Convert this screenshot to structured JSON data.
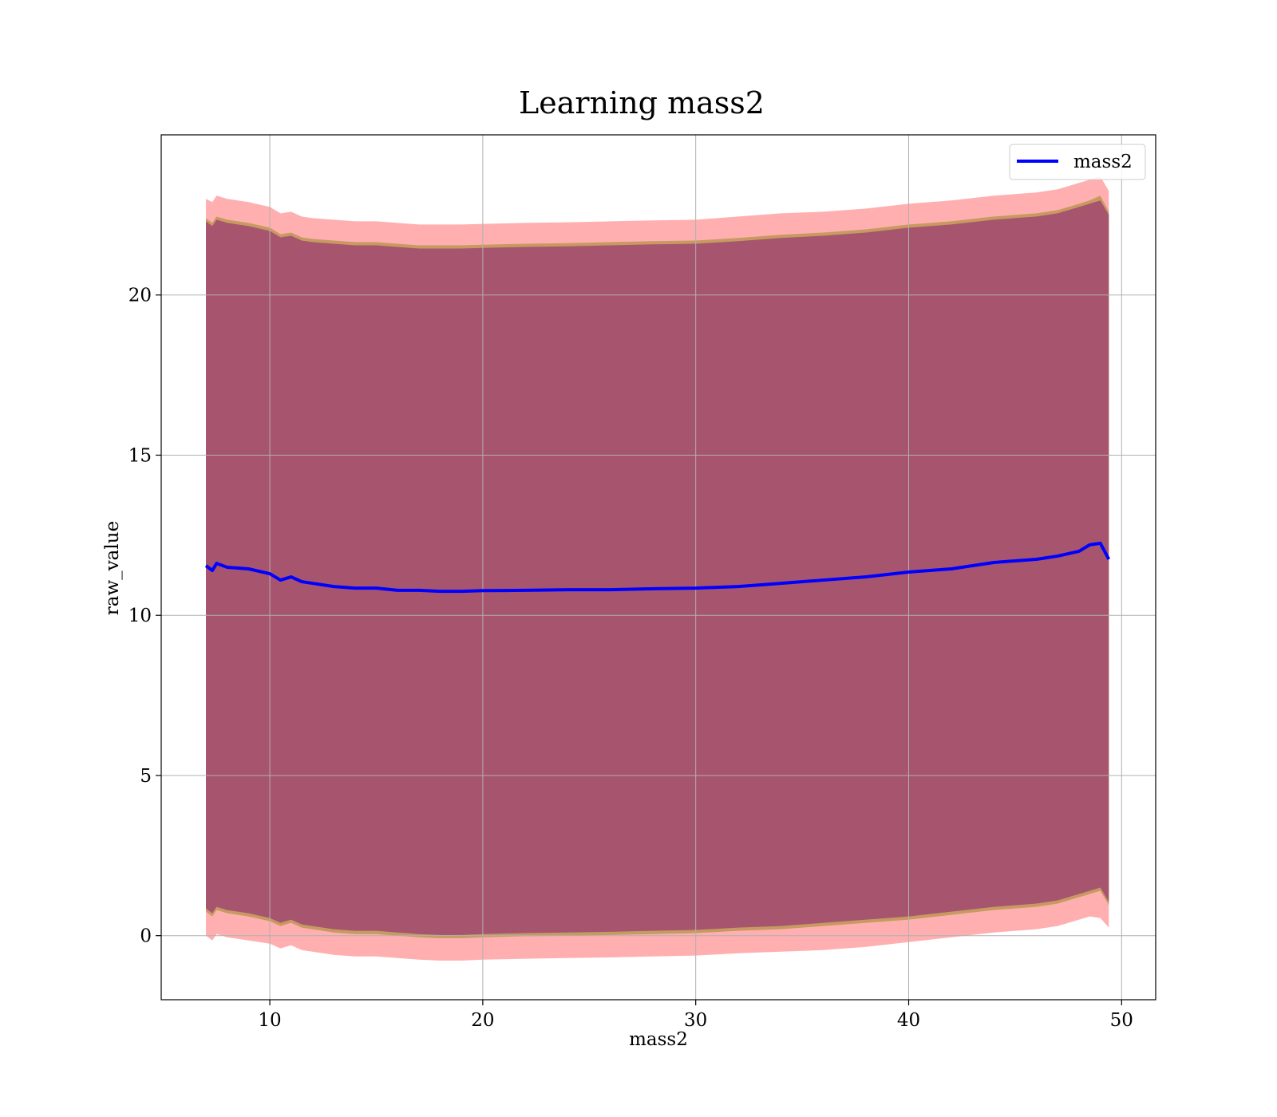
{
  "chart_data": {
    "type": "line",
    "title": "Learning mass2",
    "xlabel": "mass2",
    "ylabel": "raw_value",
    "xlim": [
      4.9,
      51.6
    ],
    "ylim": [
      -2.0,
      25.0
    ],
    "xticks": [
      10,
      20,
      30,
      40,
      50
    ],
    "yticks": [
      0,
      5,
      10,
      15,
      20
    ],
    "grid": true,
    "legend_position": "top-right",
    "series": [
      {
        "name": "mass2",
        "color": "#0000ff",
        "x": [
          7.0,
          7.3,
          7.5,
          8,
          9,
          10,
          10.5,
          11,
          11.5,
          12,
          13,
          14,
          15,
          16,
          17,
          18,
          19,
          20,
          22,
          24,
          26,
          28,
          30,
          32,
          34,
          36,
          38,
          40,
          42,
          44,
          46,
          47,
          48,
          48.5,
          49.0,
          49.4
        ],
        "y": [
          11.55,
          11.4,
          11.62,
          11.5,
          11.45,
          11.3,
          11.1,
          11.2,
          11.05,
          11.0,
          10.9,
          10.85,
          10.85,
          10.78,
          10.78,
          10.75,
          10.75,
          10.77,
          10.78,
          10.8,
          10.8,
          10.83,
          10.85,
          10.9,
          11.0,
          11.1,
          11.2,
          11.35,
          11.45,
          11.65,
          11.75,
          11.85,
          12.0,
          12.2,
          12.25,
          11.75
        ]
      }
    ],
    "bands": [
      {
        "color": "#ff6060",
        "opacity": 0.5,
        "x": [
          7.0,
          7.3,
          7.5,
          8,
          9,
          10,
          10.5,
          11,
          11.5,
          12,
          13,
          14,
          15,
          16,
          17,
          18,
          19,
          20,
          22,
          24,
          26,
          28,
          30,
          32,
          34,
          36,
          38,
          40,
          42,
          44,
          46,
          47,
          48,
          48.5,
          49.0,
          49.4
        ],
        "upper": [
          23.0,
          22.9,
          23.1,
          23.0,
          22.9,
          22.75,
          22.55,
          22.6,
          22.45,
          22.4,
          22.35,
          22.3,
          22.3,
          22.25,
          22.2,
          22.2,
          22.2,
          22.22,
          22.25,
          22.27,
          22.3,
          22.33,
          22.35,
          22.45,
          22.55,
          22.6,
          22.7,
          22.85,
          22.95,
          23.1,
          23.2,
          23.3,
          23.5,
          23.6,
          23.7,
          23.25
        ],
        "lower": [
          0.0,
          -0.15,
          0.05,
          -0.05,
          -0.15,
          -0.25,
          -0.4,
          -0.3,
          -0.45,
          -0.5,
          -0.6,
          -0.65,
          -0.65,
          -0.7,
          -0.75,
          -0.78,
          -0.78,
          -0.75,
          -0.72,
          -0.7,
          -0.68,
          -0.65,
          -0.62,
          -0.55,
          -0.5,
          -0.45,
          -0.35,
          -0.2,
          -0.05,
          0.1,
          0.2,
          0.3,
          0.5,
          0.6,
          0.55,
          0.25
        ]
      },
      {
        "color": "#808000",
        "opacity": 0.45,
        "x": [
          7.0,
          7.3,
          7.5,
          8,
          9,
          10,
          10.5,
          11,
          11.5,
          12,
          13,
          14,
          15,
          16,
          17,
          18,
          19,
          20,
          22,
          24,
          26,
          28,
          30,
          32,
          34,
          36,
          38,
          40,
          42,
          44,
          46,
          47,
          48,
          48.5,
          49.0,
          49.4
        ],
        "upper": [
          22.4,
          22.25,
          22.45,
          22.35,
          22.25,
          22.1,
          21.9,
          21.95,
          21.8,
          21.75,
          21.7,
          21.65,
          21.65,
          21.6,
          21.55,
          21.55,
          21.55,
          21.57,
          21.6,
          21.62,
          21.65,
          21.68,
          21.7,
          21.78,
          21.88,
          21.95,
          22.05,
          22.2,
          22.3,
          22.45,
          22.55,
          22.65,
          22.85,
          22.95,
          23.1,
          22.6
        ],
        "lower": [
          0.75,
          0.6,
          0.8,
          0.7,
          0.6,
          0.45,
          0.3,
          0.4,
          0.25,
          0.2,
          0.1,
          0.05,
          0.05,
          0.0,
          -0.05,
          -0.08,
          -0.08,
          -0.05,
          -0.02,
          0.0,
          0.02,
          0.05,
          0.08,
          0.15,
          0.2,
          0.3,
          0.4,
          0.5,
          0.65,
          0.8,
          0.9,
          1.0,
          1.2,
          1.3,
          1.4,
          0.95
        ]
      },
      {
        "color": "#800080",
        "opacity": 0.45,
        "x": [
          7.0,
          7.3,
          7.5,
          8,
          9,
          10,
          10.5,
          11,
          11.5,
          12,
          13,
          14,
          15,
          16,
          17,
          18,
          19,
          20,
          22,
          24,
          26,
          28,
          30,
          32,
          34,
          36,
          38,
          40,
          42,
          44,
          46,
          47,
          48,
          48.5,
          49.0,
          49.4
        ],
        "upper": [
          22.3,
          22.15,
          22.35,
          22.25,
          22.15,
          22.0,
          21.8,
          21.85,
          21.7,
          21.65,
          21.6,
          21.55,
          21.55,
          21.5,
          21.45,
          21.45,
          21.45,
          21.47,
          21.5,
          21.52,
          21.55,
          21.58,
          21.6,
          21.68,
          21.78,
          21.85,
          21.95,
          22.1,
          22.2,
          22.35,
          22.45,
          22.55,
          22.75,
          22.85,
          22.95,
          22.5
        ],
        "lower": [
          0.85,
          0.7,
          0.9,
          0.8,
          0.7,
          0.55,
          0.4,
          0.5,
          0.35,
          0.3,
          0.2,
          0.15,
          0.15,
          0.1,
          0.05,
          0.02,
          0.02,
          0.05,
          0.08,
          0.1,
          0.12,
          0.15,
          0.18,
          0.25,
          0.3,
          0.4,
          0.5,
          0.6,
          0.75,
          0.9,
          1.0,
          1.1,
          1.3,
          1.4,
          1.5,
          1.05
        ]
      }
    ]
  }
}
